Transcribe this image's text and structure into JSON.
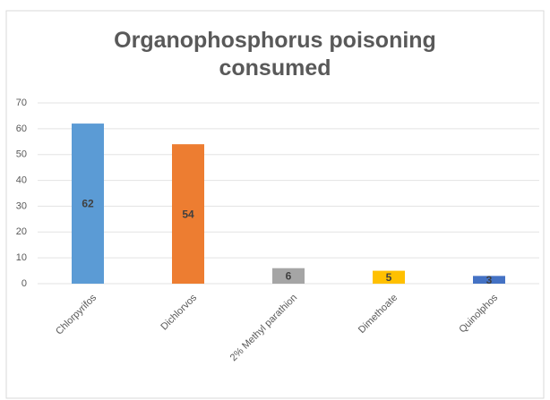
{
  "chart_data": {
    "type": "bar",
    "title": "Organophosphorus poisoning consumed",
    "categories": [
      "Chlorpyrifos",
      "Dichlorvos",
      "2% Methyl parathion",
      "Dimethoate",
      "Quinolphos"
    ],
    "values": [
      62,
      54,
      6,
      5,
      3
    ],
    "colors": [
      "#5b9bd5",
      "#ed7d31",
      "#a5a5a5",
      "#ffc000",
      "#4472c4"
    ],
    "ylim": [
      0,
      70
    ],
    "yticks": [
      0,
      10,
      20,
      30,
      40,
      50,
      60,
      70
    ],
    "grid": true
  }
}
